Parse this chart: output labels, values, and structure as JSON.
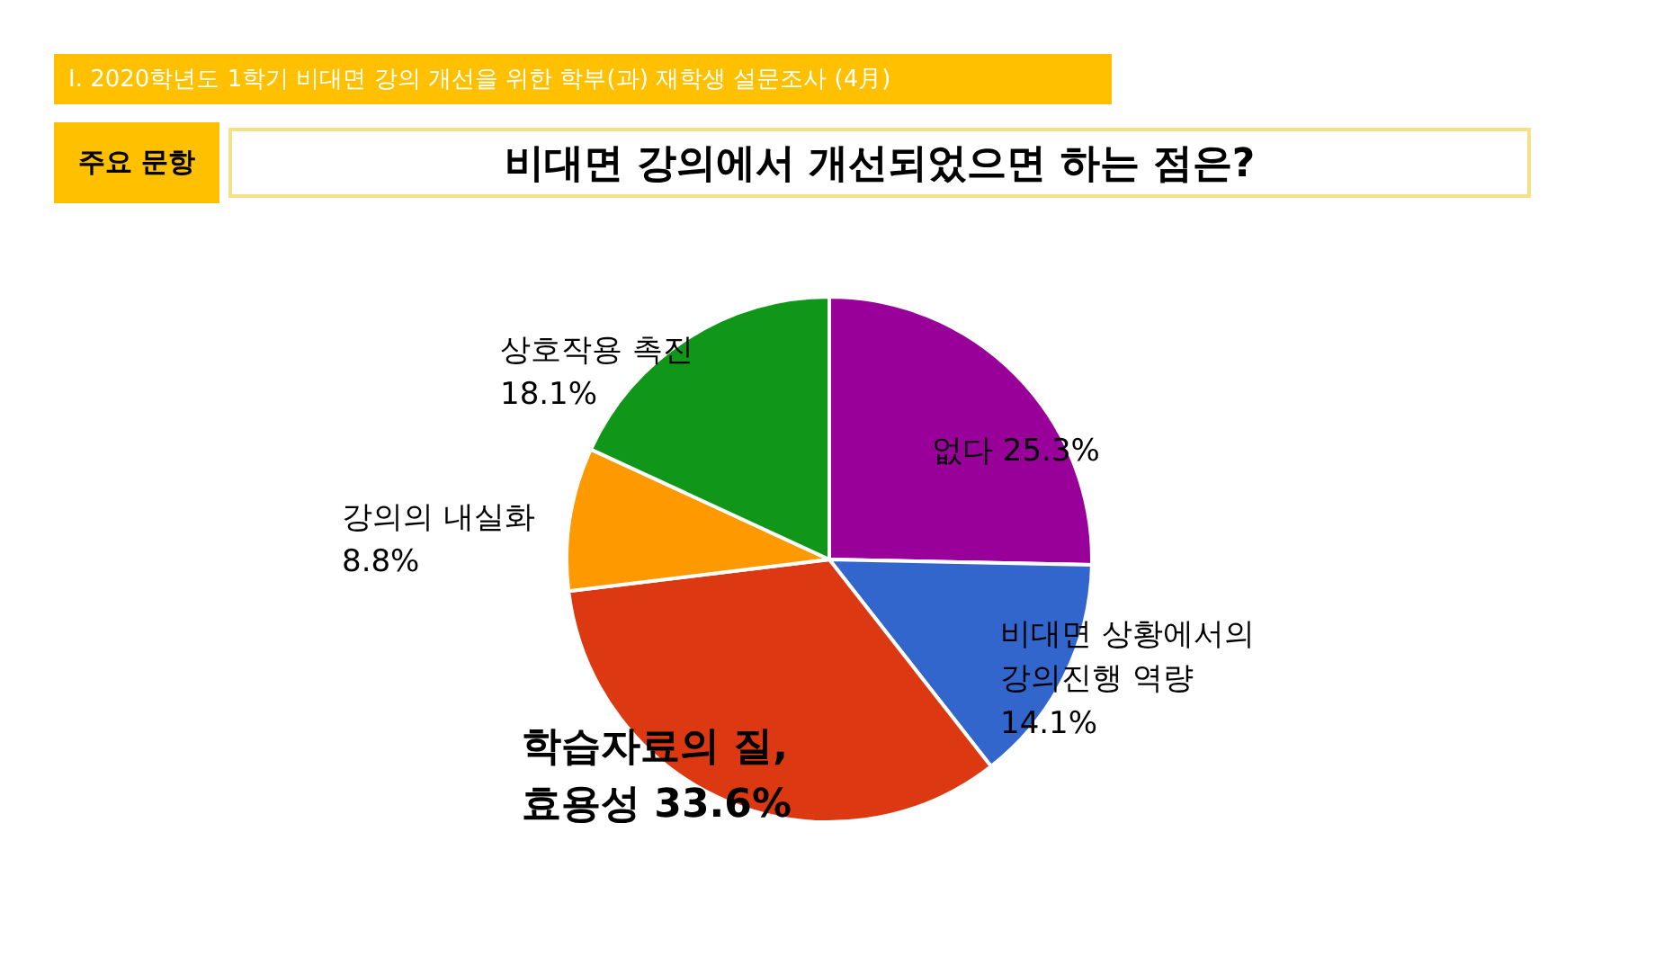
{
  "chart_data": {
    "type": "pie",
    "title": "Ⅰ. 2020학년도 1학기 비대면 강의 개선을 위한 학부(과) 재학생 설문조사 (4月)",
    "subtitle": "비대면 강의에서 개선되었으면 하는 점은?",
    "annotations": [
      "주요 문항"
    ],
    "categories": [
      "없다",
      "비대면 상황에서의 강의진행 역량",
      "학습자료의 질, 효용성",
      "강의의 내실화",
      "상호작용 촉진"
    ],
    "values": [
      25.3,
      14.1,
      33.6,
      8.8,
      18.1
    ],
    "value_labels": [
      "25.3%",
      "14.1%",
      "33.6%",
      "8.8%",
      "18.1%"
    ],
    "colors": [
      "#990099",
      "#3366cc",
      "#dc3912",
      "#ff9900",
      "#109618"
    ]
  }
}
